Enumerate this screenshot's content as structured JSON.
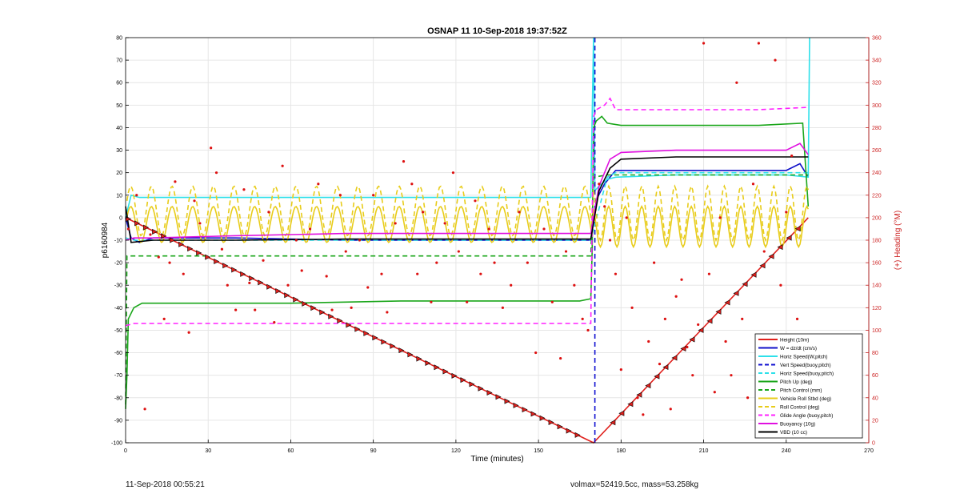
{
  "chart_data": {
    "type": "line",
    "title": "OSNAP 11 10-Sep-2018 19:37:52Z",
    "xlabel": "Time (minutes)",
    "ylabel_left": "p6160984",
    "ylabel_right": "(+) Heading (°M)",
    "xlim": [
      0,
      270
    ],
    "ylim_left": [
      -100,
      80
    ],
    "ylim_right": [
      0,
      360
    ],
    "x_ticks": [
      0,
      30,
      60,
      90,
      120,
      150,
      180,
      210,
      240,
      270
    ],
    "y_ticks_left": [
      -100,
      -90,
      -80,
      -70,
      -60,
      -50,
      -40,
      -30,
      -20,
      -10,
      0,
      10,
      20,
      30,
      40,
      50,
      60,
      70,
      80
    ],
    "y_ticks_right": [
      0,
      20,
      40,
      60,
      80,
      100,
      120,
      140,
      160,
      180,
      200,
      220,
      240,
      260,
      280,
      300,
      320,
      340,
      360
    ],
    "grid": true,
    "legend_position": "bottom-right",
    "colors": {
      "axis_left": "#000000",
      "axis_right": "#cc2222",
      "grid": "#e6e6e6"
    },
    "series": [
      {
        "name": "Height (10m)",
        "color": "#e0201c",
        "style": "solid",
        "x": [
          0,
          170,
          248
        ],
        "y": [
          0,
          -100,
          0
        ]
      },
      {
        "name": "W = dz/dt (cm/s)",
        "color": "#1010c8",
        "style": "solid",
        "x": [
          0,
          2,
          5,
          10,
          40,
          80,
          120,
          160,
          169,
          171,
          174,
          178,
          200,
          230,
          240,
          245,
          248
        ],
        "y": [
          0,
          -9,
          -11,
          -9,
          -9,
          -10,
          -10,
          -10,
          -10,
          8,
          15,
          21,
          21,
          21,
          21,
          24,
          18
        ]
      },
      {
        "name": "Horiz Speed(W,pitch)",
        "color": "#2ee0ea",
        "style": "solid",
        "x": [
          0,
          2,
          5,
          10,
          40,
          80,
          120,
          160,
          169,
          170,
          170.5,
          172,
          175,
          178,
          200,
          230,
          240,
          248,
          248.5
        ],
        "y": [
          0,
          10,
          9,
          9,
          9,
          9,
          9,
          9,
          9,
          80,
          12,
          14,
          17,
          18,
          19,
          19,
          19,
          18,
          80
        ]
      },
      {
        "name": "Vert Speed(buoy,pitch)",
        "color": "#1010d0",
        "style": "dashed",
        "x": [
          170.5,
          170.5,
          170.5
        ],
        "y": [
          80,
          0,
          -100
        ]
      },
      {
        "name": "Horiz Speed(buoy,pitch)",
        "color": "#2ee0ea",
        "style": "dashed",
        "x": [
          0,
          3,
          10,
          40,
          80,
          120,
          160,
          169,
          175,
          178,
          200,
          230,
          248
        ],
        "y": [
          -9,
          -10,
          -10,
          -10,
          -10,
          -10,
          -10,
          -10,
          18,
          20,
          20,
          20,
          20
        ]
      },
      {
        "name": "Pitch Up (deg)",
        "color": "#1aa61a",
        "style": "solid",
        "x": [
          0,
          0.5,
          1,
          3,
          6,
          20,
          60,
          100,
          140,
          165,
          169,
          169.5,
          170,
          171,
          173,
          175,
          180,
          200,
          230,
          246,
          248
        ],
        "y": [
          -85,
          -70,
          -45,
          -40,
          -38,
          -38,
          -38,
          -37,
          -37,
          -37,
          -36,
          -15,
          40,
          43,
          45,
          42,
          41,
          41,
          41,
          42,
          5
        ]
      },
      {
        "name": "Pitch Control (mm)",
        "color": "#1aa61a",
        "style": "dashed",
        "x": [
          0,
          0.5,
          2,
          5,
          40,
          80,
          120,
          160,
          169,
          170,
          175,
          200,
          230,
          248
        ],
        "y": [
          -83,
          -17,
          -17,
          -17,
          -17,
          -17,
          -17,
          -17,
          -17,
          18,
          19,
          19,
          19,
          19
        ]
      },
      {
        "name": "Vehicle Roll Stbd (deg)",
        "color": "#e8cc1a",
        "style": "solid",
        "x": [],
        "y": []
      },
      {
        "name": "Roll Control (deg)",
        "color": "#e8cc1a",
        "style": "dashed",
        "x": [],
        "y": []
      },
      {
        "name": "Glide Angle (buoy,pitch)",
        "color": "#ff20ff",
        "style": "dashed",
        "x": [
          0,
          3,
          10,
          40,
          80,
          120,
          160,
          169,
          170,
          171,
          174,
          176,
          178,
          200,
          230,
          248
        ],
        "y": [
          -48,
          -47,
          -47,
          -47,
          -47,
          -47,
          -47,
          -47,
          45,
          48,
          50,
          53,
          48,
          48,
          48,
          49
        ]
      },
      {
        "name": "Buoyancy (10g)",
        "color": "#e010e0",
        "style": "solid",
        "x": [
          0,
          3,
          10,
          40,
          80,
          120,
          160,
          169,
          172,
          176,
          180,
          200,
          230,
          240,
          245,
          248
        ],
        "y": [
          -10,
          -9,
          -9,
          -8,
          -7,
          -7,
          -7,
          -7,
          14,
          26,
          29,
          30,
          30,
          30,
          33,
          28
        ]
      },
      {
        "name": "VBD (10 cc)",
        "color": "#000000",
        "style": "solid",
        "x": [
          0,
          2,
          10,
          40,
          80,
          120,
          160,
          169,
          172,
          176,
          180,
          200,
          230,
          248
        ],
        "y": [
          5,
          -11,
          -10,
          -10,
          -9.5,
          -9.5,
          -9.5,
          -9.5,
          12,
          22,
          26,
          27,
          27,
          27
        ]
      }
    ],
    "heading_points": {
      "color": "#dd1010",
      "axis": "right",
      "x": [
        1,
        4,
        7,
        9,
        12,
        14,
        16,
        18,
        21,
        23,
        25,
        27,
        31,
        33,
        35,
        37,
        40,
        43,
        45,
        47,
        50,
        52,
        54,
        57,
        59,
        62,
        64,
        67,
        70,
        73,
        75,
        78,
        80,
        82,
        85,
        88,
        90,
        93,
        95,
        98,
        101,
        104,
        106,
        108,
        111,
        113,
        116,
        119,
        121,
        124,
        127,
        129,
        132,
        134,
        137,
        140,
        143,
        146,
        149,
        152,
        155,
        158,
        160,
        163,
        166,
        168,
        172,
        174,
        176,
        178,
        180,
        182,
        184,
        186,
        188,
        190,
        192,
        194,
        196,
        198,
        200,
        202,
        204,
        206,
        208,
        210,
        212,
        214,
        216,
        218,
        220,
        222,
        224,
        226,
        228,
        230,
        232,
        234,
        236,
        238,
        240,
        242,
        244,
        246
      ],
      "y": [
        190,
        220,
        30,
        185,
        165,
        110,
        160,
        232,
        150,
        98,
        215,
        195,
        262,
        240,
        172,
        140,
        118,
        225,
        142,
        118,
        162,
        205,
        107,
        246,
        140,
        180,
        153,
        190,
        230,
        148,
        118,
        220,
        170,
        120,
        180,
        138,
        220,
        150,
        116,
        195,
        250,
        230,
        150,
        205,
        125,
        160,
        195,
        240,
        170,
        125,
        215,
        150,
        190,
        160,
        120,
        140,
        205,
        160,
        80,
        190,
        125,
        75,
        170,
        140,
        110,
        100,
        230,
        210,
        180,
        150,
        65,
        200,
        120,
        40,
        25,
        90,
        160,
        70,
        110,
        30,
        130,
        145,
        85,
        60,
        105,
        355,
        150,
        45,
        200,
        90,
        60,
        320,
        110,
        40,
        230,
        355,
        170,
        65,
        340,
        140,
        205,
        255,
        110,
        95
      ]
    }
  },
  "footer": {
    "left": "11-Sep-2018 00:55:21",
    "right": "volmax=52419.5cc, mass=53.258kg"
  }
}
